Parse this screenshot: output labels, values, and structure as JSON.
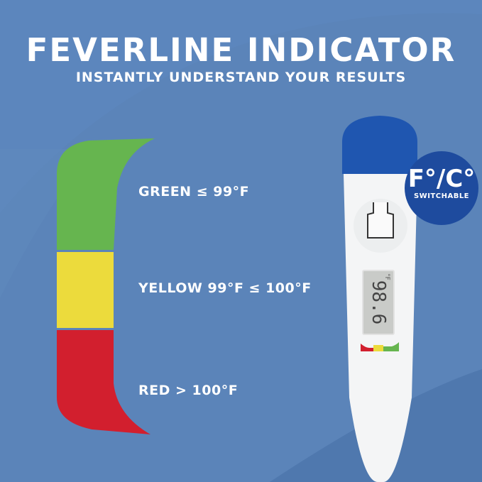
{
  "header": {
    "title": "FEVERLINE INDICATOR",
    "subtitle": "INSTANTLY UNDERSTAND YOUR RESULTS"
  },
  "indicator": {
    "items": [
      {
        "label": "GREEN ≤ 99°F",
        "color": "#66b54f"
      },
      {
        "label": "YELLOW 99°F ≤ 100°F",
        "color": "#ecdb3c"
      },
      {
        "label": "RED > 100°F",
        "color": "#d21f2e"
      }
    ]
  },
  "badge": {
    "main": "F°/C°",
    "sub": "SWITCHABLE",
    "color": "#1e4b9e"
  },
  "thermometer": {
    "reading": "98.6",
    "unit": "°F",
    "cap_color": "#1f56b0"
  },
  "colors": {
    "background": "#5b84b9"
  }
}
